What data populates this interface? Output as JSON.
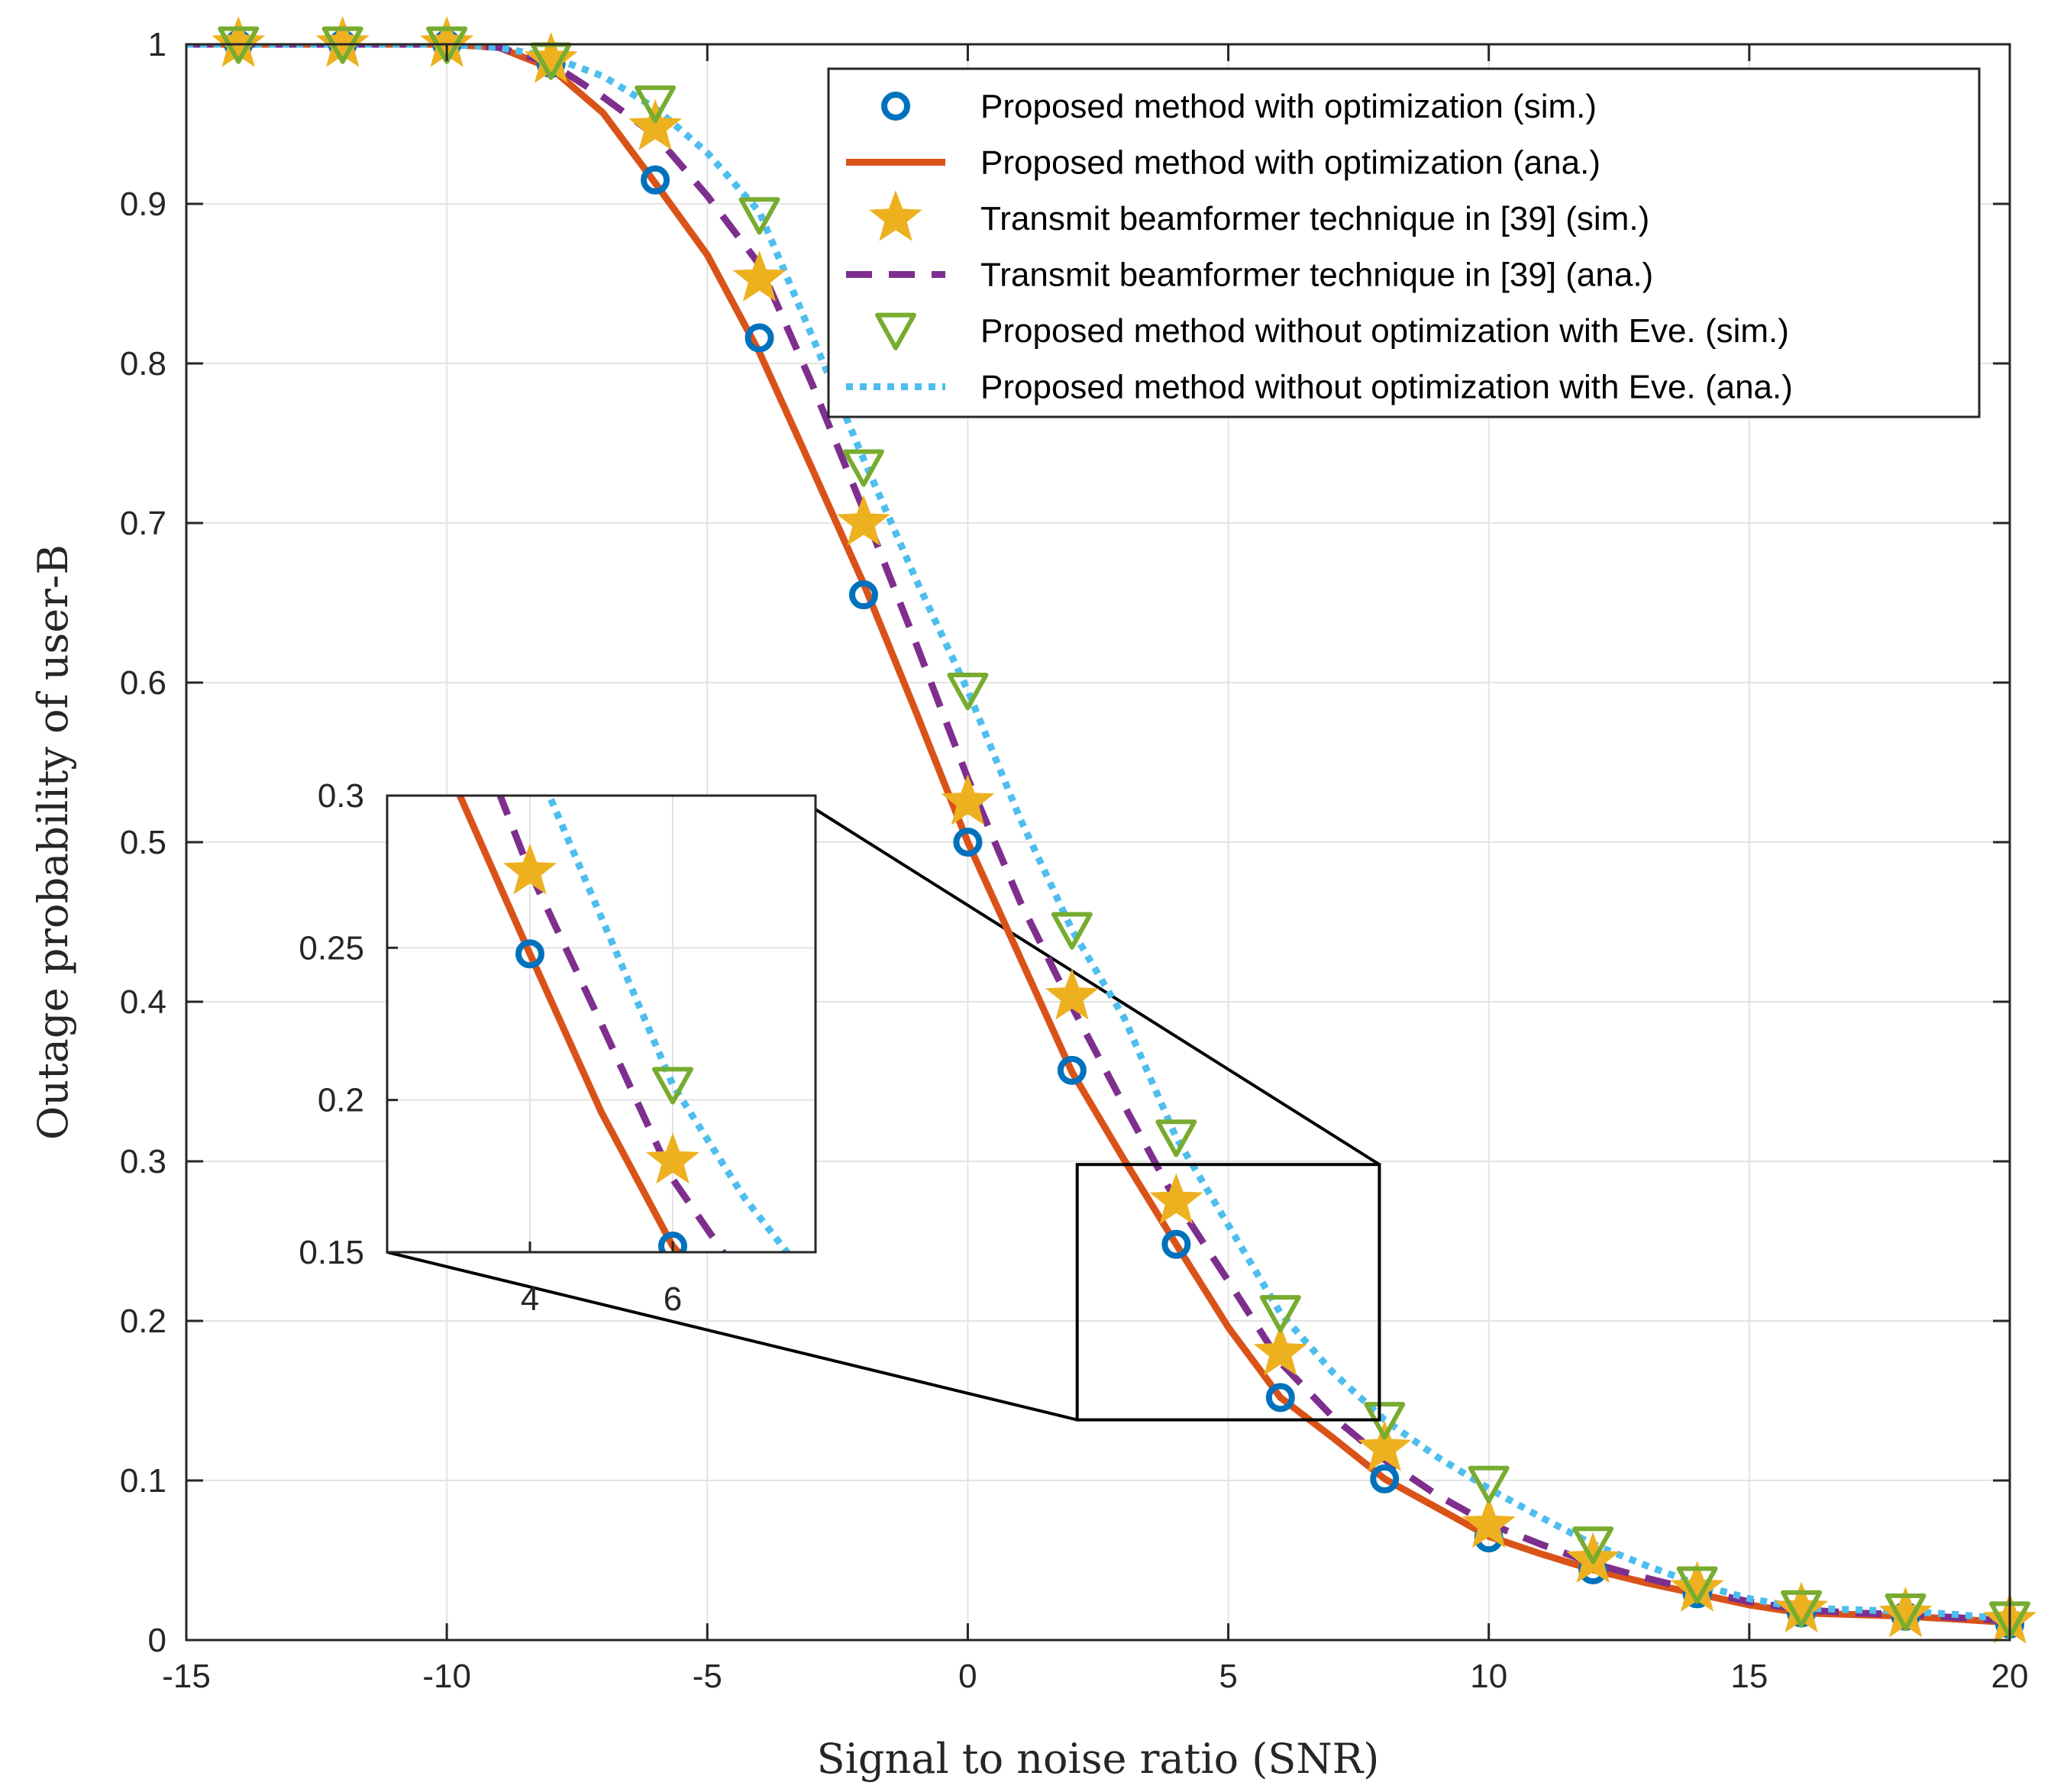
{
  "chart_data": {
    "type": "line",
    "title": "",
    "xlabel": "Signal to noise ratio (SNR)",
    "ylabel": "Outage probability of user-B",
    "xlim": [
      -15,
      20
    ],
    "ylim": [
      0,
      1
    ],
    "xticks": [
      -15,
      -10,
      -5,
      0,
      5,
      10,
      15,
      20
    ],
    "yticks": [
      0,
      0.1,
      0.2,
      0.3,
      0.4,
      0.5,
      0.6,
      0.7,
      0.8,
      0.9,
      1
    ],
    "grid": true,
    "legend_position": "top-right",
    "sim_x": [
      -14,
      -12,
      -10,
      -8,
      -6,
      -4,
      -2,
      0,
      2,
      4,
      6,
      8,
      10,
      12,
      14,
      16,
      18,
      20
    ],
    "series": [
      {
        "name": "Proposed method with optimization (sim.)",
        "color": "#0072BD",
        "style": "circle",
        "x": [
          -14,
          -12,
          -10,
          -8,
          -6,
          -4,
          -2,
          0,
          2,
          4,
          6,
          8,
          10,
          12,
          14,
          16,
          18,
          20
        ],
        "values": [
          1.0,
          1.0,
          1.0,
          0.988,
          0.915,
          0.816,
          0.655,
          0.5,
          0.357,
          0.248,
          0.152,
          0.101,
          0.064,
          0.044,
          0.029,
          0.017,
          0.015,
          0.01
        ]
      },
      {
        "name": "Proposed method with optimization (ana.)",
        "color": "#D95319",
        "style": "solid",
        "x": [
          -15,
          -14,
          -12,
          -10,
          -9,
          -8,
          -7,
          -6,
          -5,
          -4,
          -3,
          -2,
          -1,
          0,
          1,
          2,
          3,
          4,
          5,
          6,
          7,
          8,
          9,
          10,
          11,
          12,
          13,
          14,
          15,
          16,
          17,
          18,
          19,
          20
        ],
        "values": [
          1.0,
          1.0,
          1.0,
          1.0,
          0.998,
          0.985,
          0.957,
          0.913,
          0.868,
          0.807,
          0.735,
          0.662,
          0.582,
          0.5,
          0.428,
          0.356,
          0.301,
          0.248,
          0.196,
          0.152,
          0.127,
          0.101,
          0.083,
          0.065,
          0.054,
          0.044,
          0.036,
          0.029,
          0.022,
          0.017,
          0.016,
          0.015,
          0.013,
          0.011
        ]
      },
      {
        "name": "Transmit beamformer technique in [39] (sim.)",
        "color": "#EDB120",
        "style": "star",
        "x": [
          -14,
          -12,
          -10,
          -8,
          -6,
          -4,
          -2,
          0,
          2,
          4,
          6,
          8,
          10,
          12,
          14,
          16,
          18,
          20
        ],
        "values": [
          1.0,
          1.0,
          1.0,
          0.99,
          0.948,
          0.853,
          0.7,
          0.525,
          0.403,
          0.275,
          0.18,
          0.12,
          0.072,
          0.05,
          0.032,
          0.019,
          0.016,
          0.012
        ]
      },
      {
        "name": "Transmit beamformer technique in [39] (ana.)",
        "color": "#7E2F8E",
        "style": "dashed",
        "x": [
          -15,
          -14,
          -12,
          -10,
          -9,
          -8,
          -7,
          -6,
          -5,
          -4,
          -3,
          -2,
          -1,
          0,
          1,
          2,
          3,
          4,
          5,
          6,
          7,
          8,
          9,
          10,
          11,
          12,
          13,
          14,
          15,
          16,
          17,
          18,
          19,
          20
        ],
        "values": [
          1.0,
          1.0,
          1.0,
          1.0,
          0.998,
          0.988,
          0.967,
          0.943,
          0.905,
          0.862,
          0.788,
          0.708,
          0.625,
          0.54,
          0.463,
          0.397,
          0.335,
          0.275,
          0.225,
          0.174,
          0.14,
          0.113,
          0.091,
          0.073,
          0.06,
          0.048,
          0.039,
          0.031,
          0.024,
          0.019,
          0.017,
          0.016,
          0.014,
          0.012
        ]
      },
      {
        "name": "Proposed method without optimization with Eve. (sim.)",
        "color": "#77AC30",
        "style": "triangle-down",
        "x": [
          -14,
          -12,
          -10,
          -8,
          -6,
          -4,
          -2,
          0,
          2,
          4,
          6,
          8,
          10,
          12,
          14,
          16,
          18,
          20
        ],
        "values": [
          1.0,
          1.0,
          1.0,
          0.99,
          0.963,
          0.893,
          0.735,
          0.595,
          0.445,
          0.315,
          0.205,
          0.138,
          0.098,
          0.06,
          0.035,
          0.02,
          0.018,
          0.013
        ]
      },
      {
        "name": "Proposed method without optimization with Eve. (ana.)",
        "color": "#4DBEEE",
        "style": "dotted",
        "x": [
          -15,
          -14,
          -12,
          -10,
          -9,
          -8,
          -7,
          -6,
          -5,
          -4,
          -3,
          -2,
          -1,
          0,
          1,
          2,
          3,
          4,
          5,
          6,
          7,
          8,
          9,
          10,
          11,
          12,
          13,
          14,
          15,
          16,
          17,
          18,
          19,
          20
        ],
        "values": [
          1.0,
          1.0,
          1.0,
          1.0,
          0.998,
          0.992,
          0.98,
          0.96,
          0.932,
          0.895,
          0.818,
          0.74,
          0.665,
          0.595,
          0.515,
          0.445,
          0.39,
          0.315,
          0.26,
          0.205,
          0.168,
          0.138,
          0.115,
          0.095,
          0.077,
          0.06,
          0.047,
          0.035,
          0.026,
          0.02,
          0.019,
          0.018,
          0.016,
          0.013
        ]
      }
    ],
    "inset": {
      "xlim": [
        2,
        8
      ],
      "ylim": [
        0.15,
        0.3
      ],
      "xticks": [
        4,
        6
      ],
      "yticks": [
        0.15,
        0.2,
        0.25,
        0.3
      ],
      "tick_labels_x": [
        "4",
        "6"
      ],
      "tick_labels_y": [
        "0.15",
        "0.2",
        "0.25",
        "0.3"
      ],
      "zoom_box_x": [
        2.1,
        7.9
      ],
      "zoom_box_y": [
        0.138,
        0.298
      ]
    },
    "tick_labels_x": [
      "-15",
      "-10",
      "-5",
      "0",
      "5",
      "10",
      "15",
      "20"
    ],
    "tick_labels_y": [
      "0",
      "0.1",
      "0.2",
      "0.3",
      "0.4",
      "0.5",
      "0.6",
      "0.7",
      "0.8",
      "0.9",
      "1"
    ]
  }
}
